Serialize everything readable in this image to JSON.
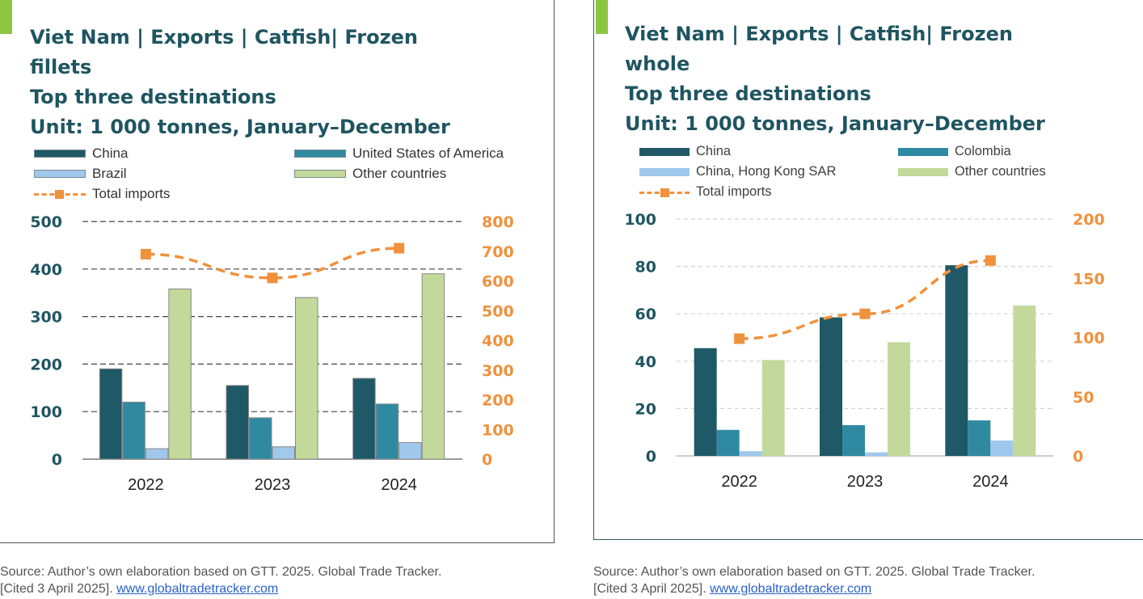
{
  "colors": {
    "china": "#1f5866",
    "usa": "#2f8aa1",
    "brazil": "#9fc8ec",
    "colombia": "#2f8aa1",
    "hk": "#9fc8ec",
    "other": "#c3d99b",
    "total": "#f0913c",
    "axis_left": "#1f5561",
    "axis_right": "#f0913c",
    "accent": "#8cc63f"
  },
  "left_panel": {
    "title": "Viet Nam | Exports | Catfish| Frozen\nfillets\nTop three destinations\nUnit: 1 000 tonnes, January–December",
    "source_line1": "Source: Author’s own elaboration based on GTT. 2025. Global Trade Tracker.",
    "source_prefix": "[Cited 3 April 2025]. ",
    "source_link": "www.globaltradetracker.com"
  },
  "right_panel": {
    "title": "Viet Nam | Exports | Catfish| Frozen\nwhole\nTop three destinations\nUnit: 1 000 tonnes, January–December",
    "source_line1": "Source: Author’s own elaboration based on GTT. 2025. Global Trade Tracker.",
    "source_prefix": "[Cited 3 April 2025]. ",
    "source_link": "www.globaltradetracker.com"
  },
  "chart_data": [
    {
      "type": "bar",
      "title": "Viet Nam | Exports | Catfish| Frozen fillets — Top three destinations — Unit: 1 000 tonnes, January–December",
      "categories": [
        "2022",
        "2023",
        "2024"
      ],
      "series": [
        {
          "name": "China",
          "values": [
            190,
            155,
            170
          ],
          "color": "#1f5866"
        },
        {
          "name": "United States of America",
          "values": [
            120,
            87,
            116
          ],
          "color": "#2f8aa1"
        },
        {
          "name": "Brazil",
          "values": [
            22,
            26,
            35
          ],
          "color": "#9fc8ec"
        },
        {
          "name": "Other countries",
          "values": [
            358,
            340,
            390
          ],
          "color": "#c3d99b"
        }
      ],
      "line": {
        "name": "Total imports",
        "values": [
          690,
          610,
          710
        ],
        "axis": "right",
        "color": "#f0913c"
      },
      "yticks_left": [
        "0",
        "100",
        "200",
        "300",
        "400",
        "500"
      ],
      "yticks_right": [
        "0",
        "100",
        "200",
        "300",
        "400",
        "500",
        "600",
        "700",
        "800"
      ],
      "ylim_left": [
        0,
        500
      ],
      "ylim_right": [
        0,
        800
      ],
      "grid": true,
      "legend_position": "top"
    },
    {
      "type": "bar",
      "title": "Viet Nam | Exports | Catfish| Frozen whole — Top three destinations — Unit: 1 000 tonnes, January–December",
      "categories": [
        "2022",
        "2023",
        "2024"
      ],
      "series": [
        {
          "name": "China",
          "values": [
            45.5,
            58.5,
            80.5
          ],
          "color": "#1f5866"
        },
        {
          "name": "Colombia",
          "values": [
            11,
            13,
            15
          ],
          "color": "#2f8aa1"
        },
        {
          "name": "China, Hong Kong SAR",
          "values": [
            2,
            1.5,
            6.5
          ],
          "color": "#9fc8ec"
        },
        {
          "name": "Other countries",
          "values": [
            40.5,
            48,
            63.5
          ],
          "color": "#c3d99b"
        }
      ],
      "line": {
        "name": "Total imports",
        "values": [
          99,
          120,
          165
        ],
        "axis": "right",
        "color": "#f0913c"
      },
      "yticks_left": [
        "0",
        "20",
        "40",
        "60",
        "80",
        "100"
      ],
      "yticks_right": [
        "0",
        "50",
        "100",
        "150",
        "200"
      ],
      "ylim_left": [
        0,
        100
      ],
      "ylim_right": [
        0,
        200
      ],
      "grid": true,
      "legend_position": "top"
    }
  ]
}
